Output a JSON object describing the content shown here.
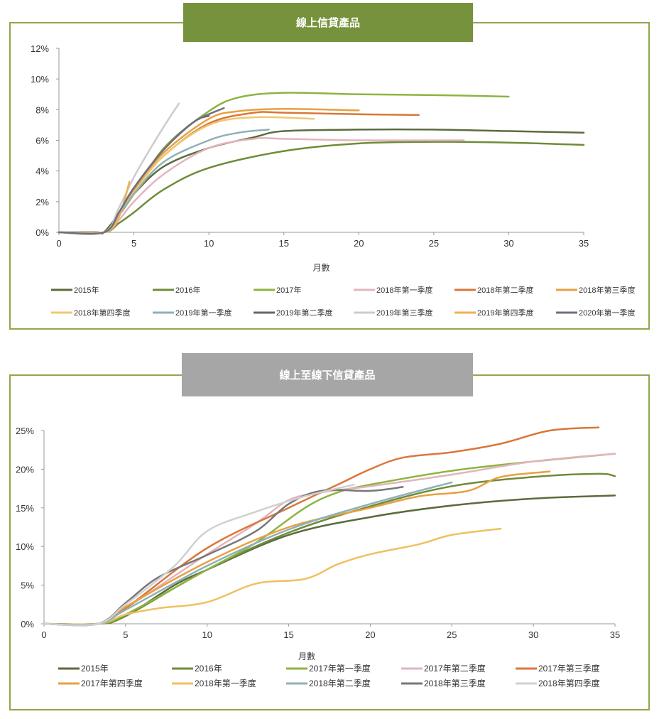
{
  "chart_data": [
    {
      "type": "line",
      "title": "線上信貸產品",
      "xlabel": "月數",
      "ylabel": "",
      "xlim": [
        0,
        35
      ],
      "ylim": [
        0,
        12
      ],
      "xticks": [
        "0",
        "5",
        "10",
        "15",
        "20",
        "25",
        "30",
        "35"
      ],
      "yticks": [
        "0%",
        "2%",
        "4%",
        "6%",
        "8%",
        "10%",
        "12%"
      ],
      "legend": "bottom",
      "title_color": "#76923c",
      "series": [
        {
          "name": "2015年",
          "color": "#5b6b3c",
          "x": [
            0,
            2.5,
            3,
            4,
            5,
            7,
            10,
            13,
            15,
            20,
            25,
            30,
            35
          ],
          "y": [
            0,
            0,
            0,
            1.2,
            2.5,
            4.3,
            5.5,
            6.2,
            6.6,
            6.7,
            6.7,
            6.6,
            6.5
          ]
        },
        {
          "name": "2016年",
          "color": "#6e8c3a",
          "x": [
            0,
            3,
            4,
            5,
            7,
            10,
            15,
            20,
            25,
            30,
            35
          ],
          "y": [
            0,
            0,
            0.6,
            1.3,
            2.8,
            4.2,
            5.3,
            5.8,
            5.9,
            5.85,
            5.7
          ]
        },
        {
          "name": "2017年",
          "color": "#8db440",
          "x": [
            0,
            3,
            4,
            5,
            7,
            10,
            12,
            15,
            20,
            25,
            30
          ],
          "y": [
            0,
            0,
            1.1,
            2.5,
            5.5,
            7.9,
            8.8,
            9.1,
            9.0,
            8.95,
            8.85
          ]
        },
        {
          "name": "2018年第一季度",
          "color": "#e3b4bc",
          "x": [
            0,
            3,
            4,
            5,
            7,
            10,
            13,
            15,
            20,
            27
          ],
          "y": [
            0,
            0,
            0.8,
            2.0,
            3.8,
            5.5,
            6.1,
            6.1,
            6.0,
            6.0
          ]
        },
        {
          "name": "2018年第二季度",
          "color": "#d9773a",
          "x": [
            0,
            3,
            4,
            5,
            7,
            10,
            13,
            15,
            20,
            24
          ],
          "y": [
            0,
            0,
            1.2,
            2.7,
            5.0,
            7.1,
            7.8,
            7.8,
            7.7,
            7.65
          ]
        },
        {
          "name": "2018年第三季度",
          "color": "#e8a040",
          "x": [
            0,
            3,
            4,
            5,
            7,
            10,
            12,
            15,
            20
          ],
          "y": [
            0,
            0,
            1.2,
            2.8,
            5.2,
            7.4,
            7.9,
            8.05,
            7.95
          ]
        },
        {
          "name": "2018年第四季度",
          "color": "#f0c870",
          "x": [
            0,
            3,
            4,
            5,
            7,
            10,
            13,
            17
          ],
          "y": [
            0,
            0,
            1.1,
            2.6,
            5.0,
            7.0,
            7.5,
            7.4
          ]
        },
        {
          "name": "2019年第一季度",
          "color": "#8fb0b8",
          "x": [
            0,
            3,
            4,
            5,
            7,
            10,
            12,
            14
          ],
          "y": [
            0,
            0,
            1.1,
            2.5,
            4.6,
            6.0,
            6.5,
            6.7
          ]
        },
        {
          "name": "2019年第二季度",
          "color": "#666666",
          "x": [
            0,
            3,
            4,
            5,
            7,
            9,
            10
          ],
          "y": [
            0,
            0,
            1.3,
            2.9,
            5.4,
            7.2,
            7.6
          ]
        },
        {
          "name": "2019年第三季度",
          "color": "#cccccc",
          "x": [
            0,
            3,
            4,
            5,
            6,
            7,
            8
          ],
          "y": [
            0,
            0,
            1.6,
            3.6,
            5.3,
            6.9,
            8.4
          ]
        },
        {
          "name": "2019年第四季度",
          "color": "#f0b050",
          "x": [
            0,
            3,
            4,
            4.7
          ],
          "y": [
            0,
            0,
            1.0,
            3.3
          ]
        },
        {
          "name": "2020年第一季度",
          "color": "#6f6f80",
          "x": [
            0,
            3,
            4,
            5,
            7,
            9,
            11
          ],
          "y": [
            0,
            0,
            1.3,
            2.9,
            5.4,
            7.2,
            8.1
          ]
        }
      ]
    },
    {
      "type": "line",
      "title": "線上至線下信貸產品",
      "xlabel": "月數",
      "ylabel": "",
      "xlim": [
        0,
        35
      ],
      "ylim": [
        0,
        25
      ],
      "xticks": [
        "0",
        "5",
        "10",
        "15",
        "20",
        "25",
        "30",
        "35"
      ],
      "yticks": [
        "0%",
        "5%",
        "10%",
        "15%",
        "20%",
        "25%"
      ],
      "legend": "bottom",
      "title_color": "#a6a6a6",
      "series": [
        {
          "name": "2015年",
          "color": "#5b6b3c",
          "x": [
            0,
            3.3,
            5,
            8,
            10,
            15,
            20,
            25,
            30,
            35
          ],
          "y": [
            0,
            0,
            1,
            5,
            7,
            11.5,
            13.8,
            15.3,
            16.2,
            16.6
          ]
        },
        {
          "name": "2016年",
          "color": "#6e8c3a",
          "x": [
            0,
            3.3,
            5,
            10,
            15,
            20,
            25,
            30,
            34,
            35
          ],
          "y": [
            0,
            0,
            1,
            7,
            11.8,
            15.2,
            17.8,
            19,
            19.4,
            19.1
          ]
        },
        {
          "name": "2017年第一季度",
          "color": "#8db440",
          "x": [
            0,
            3.3,
            5,
            10,
            13,
            16,
            18,
            20,
            25,
            30,
            35
          ],
          "y": [
            0,
            0,
            1.2,
            7,
            10.5,
            15,
            17,
            18,
            19.8,
            21,
            22
          ]
        },
        {
          "name": "2017年第二季度",
          "color": "#e3b4bc",
          "x": [
            0,
            3.3,
            5,
            10,
            13,
            15,
            17,
            20,
            25,
            30,
            35
          ],
          "y": [
            0,
            0,
            2,
            9,
            13,
            16,
            17,
            17.8,
            19.3,
            21,
            22
          ]
        },
        {
          "name": "2017年第三季度",
          "color": "#d9773a",
          "x": [
            0,
            3.3,
            5,
            10,
            15,
            18,
            20,
            22,
            25,
            28,
            31,
            34
          ],
          "y": [
            0,
            0,
            2,
            9.8,
            15,
            18,
            20,
            21.5,
            22.2,
            23.3,
            25,
            25.4
          ]
        },
        {
          "name": "2017年第四季度",
          "color": "#e8a040",
          "x": [
            0,
            3.3,
            5,
            10,
            15,
            20,
            23,
            26,
            28,
            31
          ],
          "y": [
            0,
            0,
            2.2,
            8,
            12.5,
            15,
            16.5,
            17.2,
            19,
            19.7
          ]
        },
        {
          "name": "2018年第一季度",
          "color": "#f0c060",
          "x": [
            0,
            3.3,
            5,
            7,
            10,
            13,
            16,
            18,
            20,
            23,
            25,
            28
          ],
          "y": [
            0,
            0,
            1.2,
            2,
            2.8,
            5.2,
            5.8,
            7.7,
            9,
            10.3,
            11.5,
            12.3
          ]
        },
        {
          "name": "2018年第二季度",
          "color": "#8fb0b8",
          "x": [
            0,
            3.3,
            5,
            10,
            15,
            20,
            25
          ],
          "y": [
            0,
            0,
            1.8,
            7.5,
            12.2,
            15.5,
            18.3
          ]
        },
        {
          "name": "2018年第三季度",
          "color": "#777777",
          "x": [
            0,
            3.3,
            5,
            7,
            10,
            13,
            15,
            17,
            20,
            22
          ],
          "y": [
            0,
            0,
            2.7,
            6,
            8.9,
            12,
            15.5,
            17.2,
            17.2,
            17.7
          ]
        },
        {
          "name": "2018年第四季度",
          "color": "#d0d0d0",
          "x": [
            0,
            3.3,
            5,
            8,
            10,
            13,
            16,
            19
          ],
          "y": [
            0,
            0,
            2.5,
            7.5,
            12,
            14.5,
            16.5,
            18
          ]
        }
      ]
    }
  ]
}
